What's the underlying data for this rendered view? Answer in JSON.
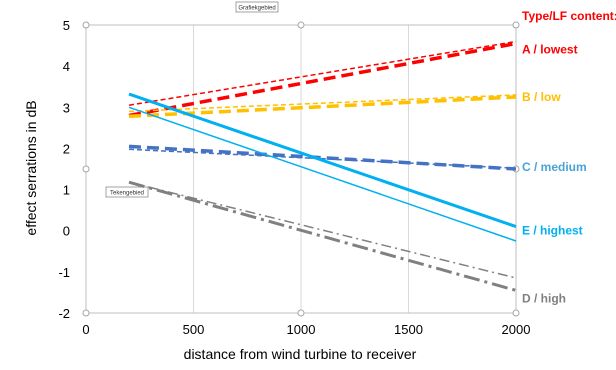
{
  "chart_data": {
    "type": "line",
    "xlabel": "distance from wind turbine to receiver",
    "ylabel": "effect serrations in dB",
    "xlim": [
      0,
      2000
    ],
    "ylim": [
      -2,
      5
    ],
    "x_ticks": [
      0,
      500,
      1000,
      1500,
      2000
    ],
    "y_ticks": [
      -2,
      -1,
      0,
      1,
      2,
      3,
      4,
      5
    ],
    "grid": "vertical",
    "legend_title": "Type/LF content:",
    "legend_position": "right",
    "annotations": [
      "Grafiekgebied",
      "Tekengebied"
    ],
    "series": [
      {
        "name": "A / lowest",
        "color": "#ff0000",
        "style": "dash-thick",
        "x": [
          200,
          2000
        ],
        "y": [
          2.8,
          4.55
        ]
      },
      {
        "name": "A / lowest",
        "color": "#ff0000",
        "style": "dash-thin",
        "x": [
          200,
          2000
        ],
        "y": [
          3.05,
          4.6
        ]
      },
      {
        "name": "B / low",
        "color": "#ffc000",
        "style": "dash-thick",
        "x": [
          200,
          2000
        ],
        "y": [
          2.78,
          3.25
        ]
      },
      {
        "name": "B / low",
        "color": "#ffc000",
        "style": "dash-thin",
        "x": [
          200,
          2000
        ],
        "y": [
          2.9,
          3.3
        ]
      },
      {
        "name": "C / medium",
        "color": "#4472c4",
        "style": "dash-thick",
        "x": [
          200,
          2000
        ],
        "y": [
          2.05,
          1.5
        ]
      },
      {
        "name": "C / medium",
        "color": "#4472c4",
        "style": "dash-thin",
        "x": [
          200,
          2000
        ],
        "y": [
          1.98,
          1.52
        ]
      },
      {
        "name": "E / highest",
        "color": "#00b0f0",
        "style": "solid-thick",
        "x": [
          200,
          2000
        ],
        "y": [
          3.32,
          0.1
        ]
      },
      {
        "name": "E / highest",
        "color": "#00b0f0",
        "style": "solid-thin",
        "x": [
          200,
          2000
        ],
        "y": [
          3.0,
          -0.25
        ]
      },
      {
        "name": "D / high",
        "color": "#808080",
        "style": "dashdot-thick",
        "x": [
          200,
          2000
        ],
        "y": [
          1.18,
          -1.45
        ]
      },
      {
        "name": "D / high",
        "color": "#808080",
        "style": "dashdot-thin",
        "x": [
          200,
          2000
        ],
        "y": [
          1.18,
          -1.15
        ]
      }
    ],
    "legend": [
      {
        "label": "A / lowest",
        "color": "#ff0000",
        "y": 4.4
      },
      {
        "label": "B / low",
        "color": "#ffc000",
        "y": 3.25
      },
      {
        "label": "C / medium",
        "color": "#4aa3d8",
        "y": 1.55
      },
      {
        "label": "E / highest",
        "color": "#00b0f0",
        "y": 0
      },
      {
        "label": "D / high",
        "color": "#808080",
        "y": -1.65
      }
    ]
  }
}
